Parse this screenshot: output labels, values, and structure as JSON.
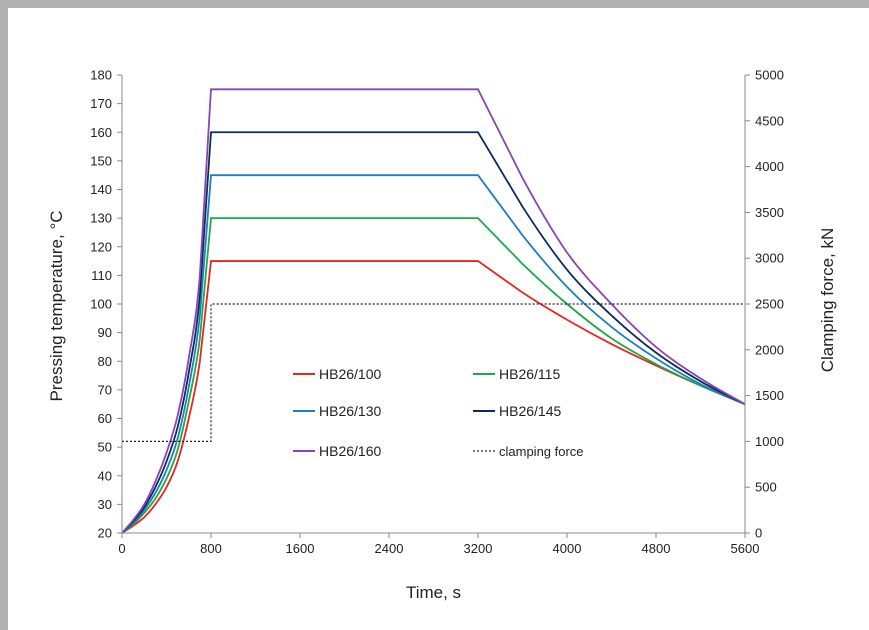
{
  "chart_data": {
    "type": "line",
    "title": "",
    "xlabel": "Time, s",
    "ylabel": "Pressing temperature, °C",
    "y2label": "Clamping force, kN",
    "xlim": [
      0,
      5600
    ],
    "ylim": [
      20,
      180
    ],
    "y2lim": [
      0,
      5000
    ],
    "x_ticks": [
      0,
      800,
      1600,
      2400,
      3200,
      4000,
      4800,
      5600
    ],
    "y_ticks": [
      20,
      30,
      40,
      50,
      60,
      70,
      80,
      90,
      100,
      110,
      120,
      130,
      140,
      150,
      160,
      170,
      180
    ],
    "y2_ticks": [
      0,
      500,
      1000,
      1500,
      2000,
      2500,
      3000,
      3500,
      4000,
      4500,
      5000
    ],
    "grid": false,
    "legend_position": "center",
    "series": [
      {
        "name": "HB26/100",
        "color": "#e8251f",
        "axis": "left",
        "points": [
          [
            0,
            20
          ],
          [
            100,
            22.5
          ],
          [
            200,
            25.5
          ],
          [
            300,
            30
          ],
          [
            400,
            36
          ],
          [
            500,
            45
          ],
          [
            600,
            60
          ],
          [
            700,
            80
          ],
          [
            800,
            115
          ],
          [
            3200,
            115
          ],
          [
            3600,
            104
          ],
          [
            4000,
            94.5
          ],
          [
            4400,
            86
          ],
          [
            4800,
            78.5
          ],
          [
            5200,
            71.5
          ],
          [
            5600,
            65
          ]
        ]
      },
      {
        "name": "HB26/115",
        "color": "#1aab4b",
        "axis": "left",
        "points": [
          [
            0,
            20
          ],
          [
            100,
            23
          ],
          [
            200,
            27
          ],
          [
            300,
            32
          ],
          [
            400,
            39
          ],
          [
            500,
            49
          ],
          [
            600,
            66
          ],
          [
            700,
            88
          ],
          [
            800,
            130
          ],
          [
            3200,
            130
          ],
          [
            3600,
            114
          ],
          [
            4000,
            100
          ],
          [
            4400,
            88
          ],
          [
            4800,
            79
          ],
          [
            5200,
            71.5
          ],
          [
            5600,
            65
          ]
        ]
      },
      {
        "name": "HB26/130",
        "color": "#1f7dc4",
        "axis": "left",
        "points": [
          [
            0,
            20
          ],
          [
            100,
            23.5
          ],
          [
            200,
            28
          ],
          [
            300,
            34
          ],
          [
            400,
            42
          ],
          [
            500,
            53
          ],
          [
            600,
            71
          ],
          [
            700,
            96
          ],
          [
            800,
            145
          ],
          [
            3200,
            145
          ],
          [
            3600,
            124
          ],
          [
            4000,
            106
          ],
          [
            4400,
            92
          ],
          [
            4800,
            81
          ],
          [
            5200,
            72
          ],
          [
            5600,
            65
          ]
        ]
      },
      {
        "name": "HB26/145",
        "color": "#0e2a5c",
        "axis": "left",
        "points": [
          [
            0,
            20
          ],
          [
            100,
            24
          ],
          [
            200,
            29
          ],
          [
            300,
            36
          ],
          [
            400,
            45
          ],
          [
            500,
            57
          ],
          [
            600,
            76
          ],
          [
            700,
            103
          ],
          [
            800,
            160
          ],
          [
            3200,
            160
          ],
          [
            3600,
            134
          ],
          [
            4000,
            112
          ],
          [
            4400,
            96
          ],
          [
            4800,
            83
          ],
          [
            5200,
            73
          ],
          [
            5600,
            65
          ]
        ]
      },
      {
        "name": "HB26/160",
        "color": "#8a44b4",
        "axis": "left",
        "points": [
          [
            0,
            20
          ],
          [
            100,
            24.5
          ],
          [
            200,
            30
          ],
          [
            300,
            38
          ],
          [
            400,
            48
          ],
          [
            500,
            61
          ],
          [
            600,
            81
          ],
          [
            700,
            110
          ],
          [
            800,
            175
          ],
          [
            3200,
            175
          ],
          [
            3600,
            144
          ],
          [
            4000,
            118
          ],
          [
            4400,
            100
          ],
          [
            4800,
            85
          ],
          [
            5200,
            74
          ],
          [
            5600,
            65
          ]
        ]
      },
      {
        "name": "clamping force",
        "color": "#222222",
        "axis": "right",
        "dashed": true,
        "points": [
          [
            0,
            1000
          ],
          [
            800,
            1000
          ],
          [
            800,
            2500
          ],
          [
            5600,
            2500
          ]
        ]
      }
    ]
  }
}
